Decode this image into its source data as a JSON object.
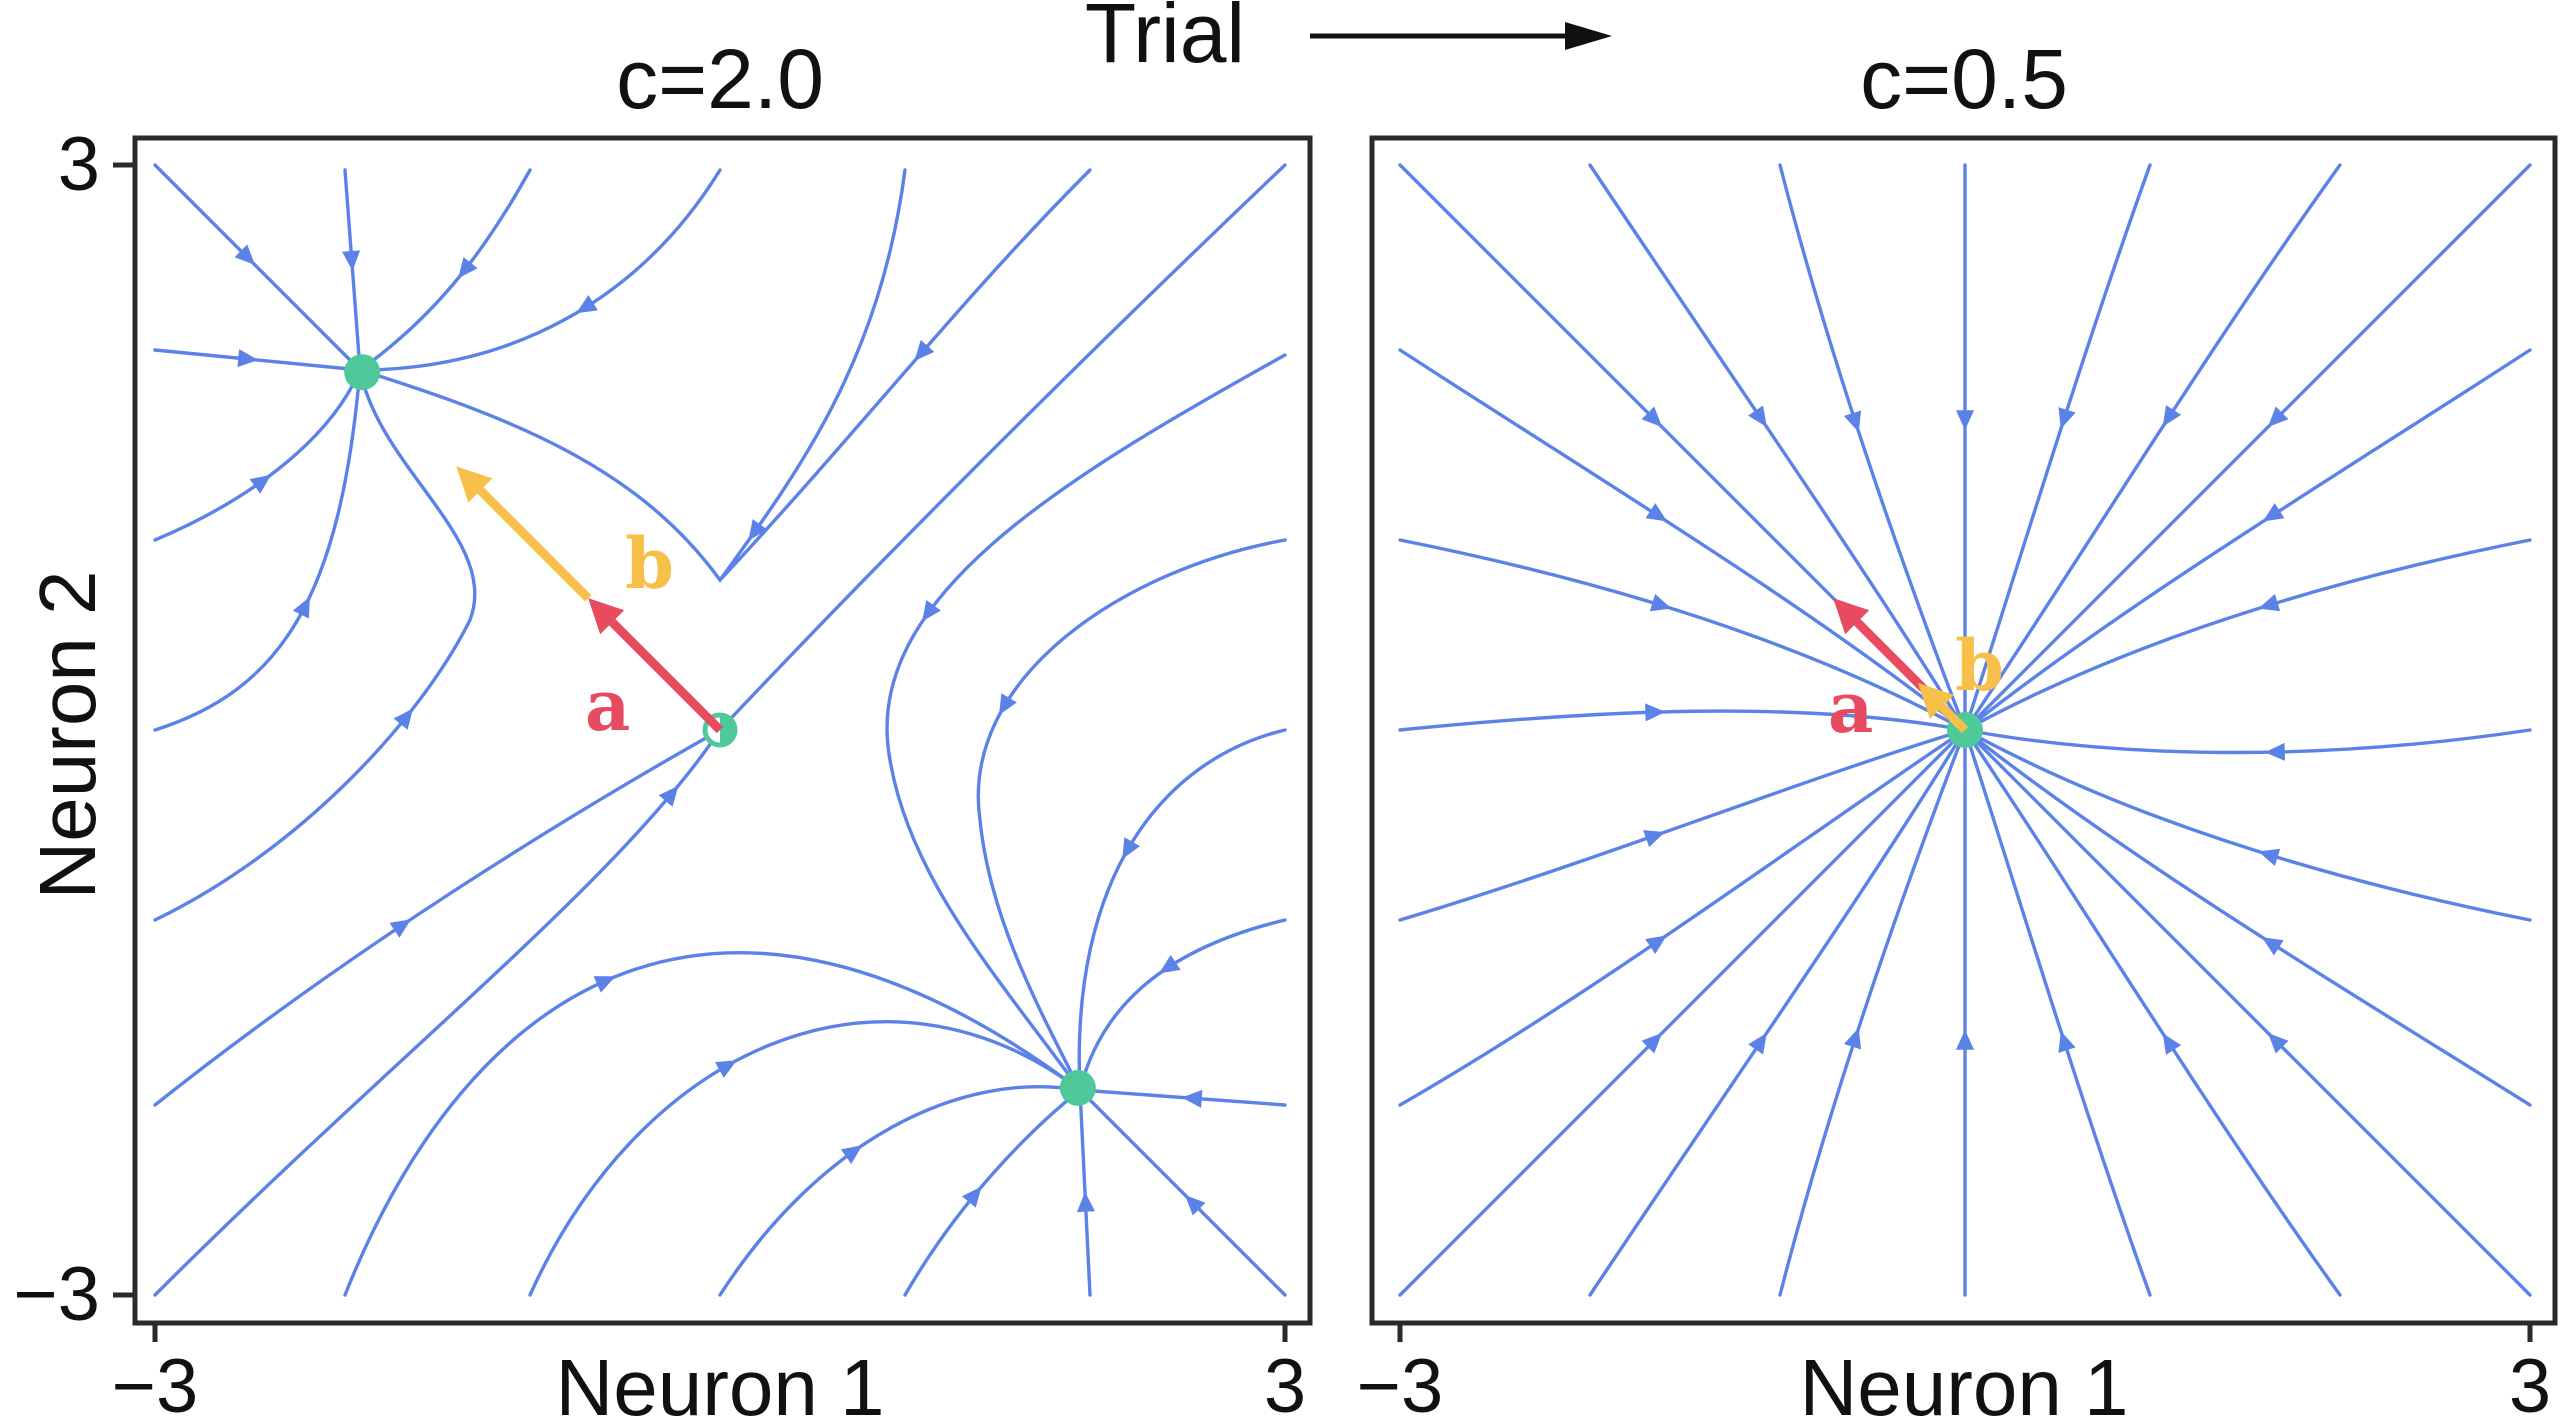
{
  "header": {
    "trial_label": "Trial"
  },
  "panels": [
    {
      "title": "c=2.0",
      "x_label": "Neuron 1",
      "y_label": "Neuron 2",
      "x_ticks": [
        "−3",
        "3"
      ],
      "y_ticks": [
        "3",
        "−3"
      ],
      "fixed_points": [
        {
          "kind": "stable",
          "x": -1.9,
          "y": 1.9
        },
        {
          "kind": "saddle",
          "x": 0.0,
          "y": 0.0
        },
        {
          "kind": "stable",
          "x": 1.9,
          "y": -1.9
        }
      ],
      "vectors": [
        {
          "label": "a",
          "color": "#e84a5f",
          "from": [
            0.0,
            0.0
          ],
          "to": [
            -0.7,
            0.7
          ]
        },
        {
          "label": "b",
          "color": "#f7c04a",
          "from": [
            -0.7,
            0.7
          ],
          "to": [
            -1.4,
            1.4
          ]
        }
      ]
    },
    {
      "title": "c=0.5",
      "x_label": "Neuron 1",
      "x_ticks": [
        "−3",
        "3"
      ],
      "fixed_points": [
        {
          "kind": "stable",
          "x": 0.0,
          "y": 0.0
        }
      ],
      "vectors": [
        {
          "label": "a",
          "color": "#e84a5f",
          "from": [
            0.0,
            0.0
          ],
          "to": [
            -0.7,
            0.7
          ]
        },
        {
          "label": "b",
          "color": "#f7c04a",
          "from": [
            0.0,
            0.0
          ],
          "to": [
            -0.25,
            0.25
          ]
        }
      ]
    }
  ],
  "colors": {
    "streamline": "#5b82e6",
    "fixed_point": "#4fc99a",
    "vector_a": "#e84a5f",
    "vector_b": "#f7c04a"
  }
}
